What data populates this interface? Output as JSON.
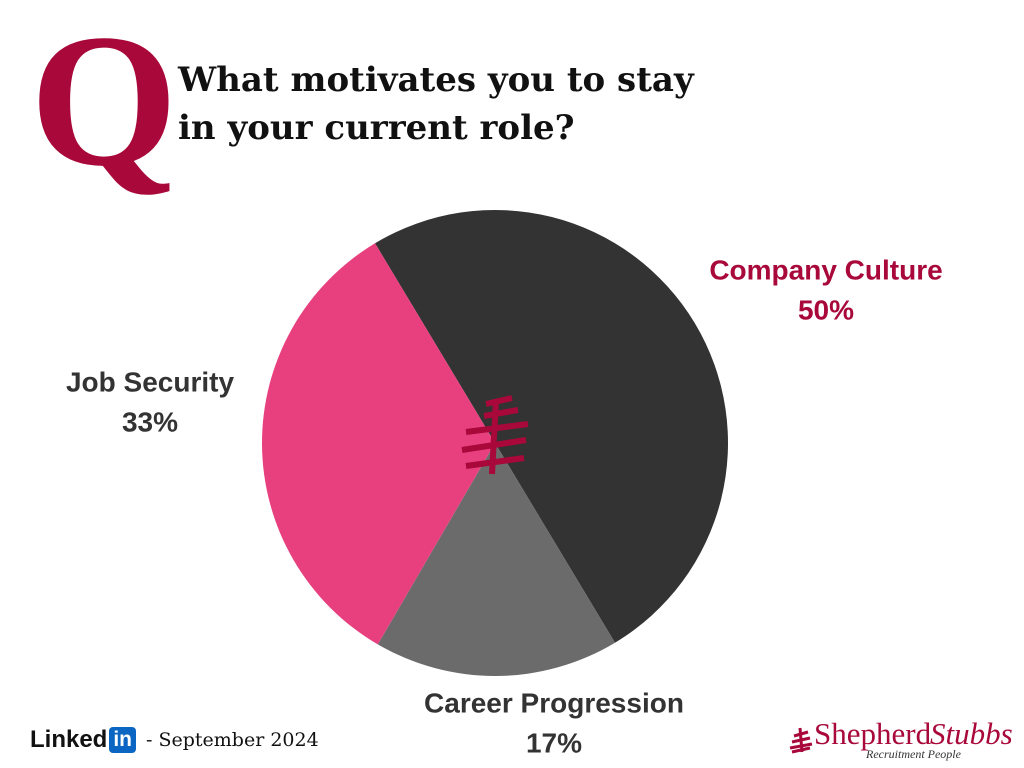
{
  "chart_data": {
    "type": "pie",
    "badge": "Q",
    "title": "What motivates you to stay in your current role?",
    "categories": [
      "Company Culture",
      "Career Progression",
      "Job Security"
    ],
    "values": [
      50,
      17,
      33
    ],
    "value_labels": [
      "50%",
      "17%",
      "33%"
    ],
    "colors": [
      "#333333",
      "#6b6b6b",
      "#e8407e"
    ],
    "label_colors": [
      "#a8083a",
      "#333333",
      "#333333"
    ]
  },
  "footer": {
    "brand": "Linked",
    "brand_badge": "in",
    "date": "- September 2024"
  },
  "logo": {
    "name_first": "Shepherd",
    "name_second": "Stubbs",
    "tagline": "Recruitment People"
  }
}
